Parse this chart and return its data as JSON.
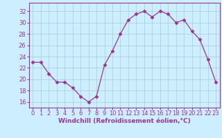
{
  "x": [
    0,
    1,
    2,
    3,
    4,
    5,
    6,
    7,
    8,
    9,
    10,
    11,
    12,
    13,
    14,
    15,
    16,
    17,
    18,
    19,
    20,
    21,
    22,
    23
  ],
  "y": [
    23,
    23,
    21,
    19.5,
    19.5,
    18.5,
    17,
    16,
    17,
    22.5,
    25,
    28,
    30.5,
    31.5,
    32,
    31,
    32,
    31.5,
    30,
    30.5,
    28.5,
    27,
    23.5,
    19.5
  ],
  "line_color": "#993399",
  "marker": "D",
  "marker_size": 2.5,
  "bg_color": "#cceeff",
  "grid_color": "#aacccc",
  "xlabel": "Windchill (Refroidissement éolien,°C)",
  "xlabel_color": "#993399",
  "xlabel_fontsize": 6.5,
  "ylabel_ticks": [
    16,
    18,
    20,
    22,
    24,
    26,
    28,
    30,
    32
  ],
  "xtick_labels": [
    "0",
    "1",
    "2",
    "3",
    "4",
    "5",
    "6",
    "7",
    "8",
    "9",
    "10",
    "11",
    "12",
    "13",
    "14",
    "15",
    "16",
    "17",
    "18",
    "19",
    "20",
    "21",
    "22",
    "23"
  ],
  "ylim": [
    15.0,
    33.5
  ],
  "xlim": [
    -0.5,
    23.5
  ],
  "tick_fontsize": 6.0,
  "tick_color": "#993399",
  "line_width": 0.9
}
